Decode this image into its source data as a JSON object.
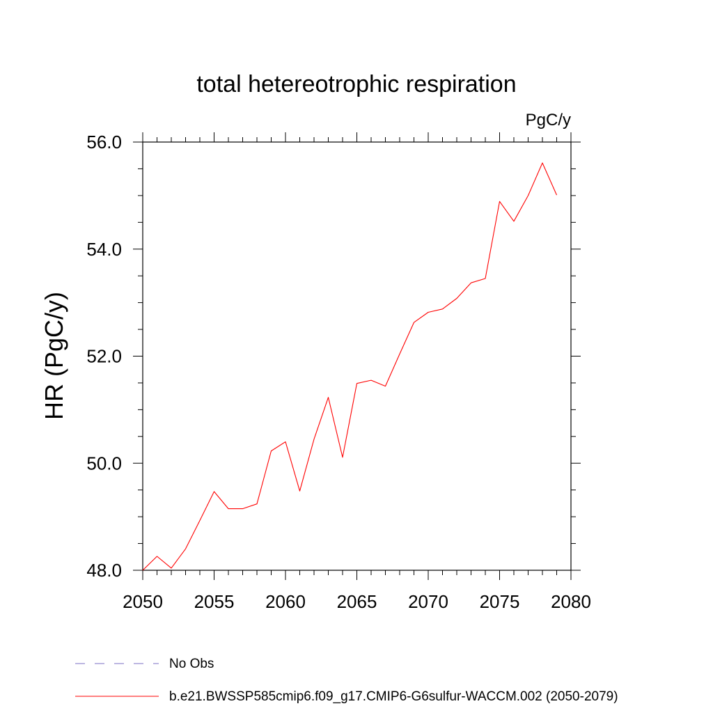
{
  "chart_data": {
    "type": "line",
    "title": "total hetereotrophic respiration",
    "units": "PgC/y",
    "ylabel": "HR  (PgC/y)",
    "xlabel": "",
    "xlim": [
      2050,
      2080
    ],
    "ylim": [
      48.0,
      56.0
    ],
    "x_ticks": [
      "2050",
      "2055",
      "2060",
      "2065",
      "2070",
      "2075",
      "2080"
    ],
    "y_ticks": [
      "48.0",
      "50.0",
      "52.0",
      "54.0",
      "56.0"
    ],
    "grid": false,
    "series": [
      {
        "name": "b.e21.BWSSP585cmip6.f09_g17.CMIP6-G6sulfur-WACCM.002 (2050-2079)",
        "color": "#ff0000",
        "x": [
          2050,
          2051,
          2052,
          2053,
          2054,
          2055,
          2056,
          2057,
          2058,
          2059,
          2060,
          2061,
          2062,
          2063,
          2064,
          2065,
          2066,
          2067,
          2068,
          2069,
          2070,
          2071,
          2072,
          2073,
          2074,
          2075,
          2076,
          2077,
          2078,
          2079
        ],
        "values": [
          48.0,
          48.26,
          48.04,
          48.4,
          48.93,
          49.47,
          49.15,
          49.15,
          49.24,
          50.23,
          50.4,
          49.48,
          50.45,
          51.23,
          50.11,
          51.49,
          51.55,
          51.44,
          52.04,
          52.63,
          52.82,
          52.88,
          53.08,
          53.37,
          53.45,
          54.89,
          54.52,
          55.0,
          55.61,
          55.01
        ]
      }
    ],
    "legend": {
      "placement": "bottom-left",
      "entries": [
        {
          "label": "No Obs",
          "color": "#7b6fc4",
          "style": "dashed"
        },
        {
          "label": "b.e21.BWSSP585cmip6.f09_g17.CMIP6-G6sulfur-WACCM.002 (2050-2079)",
          "color": "#ff0000",
          "style": "solid"
        }
      ]
    }
  }
}
